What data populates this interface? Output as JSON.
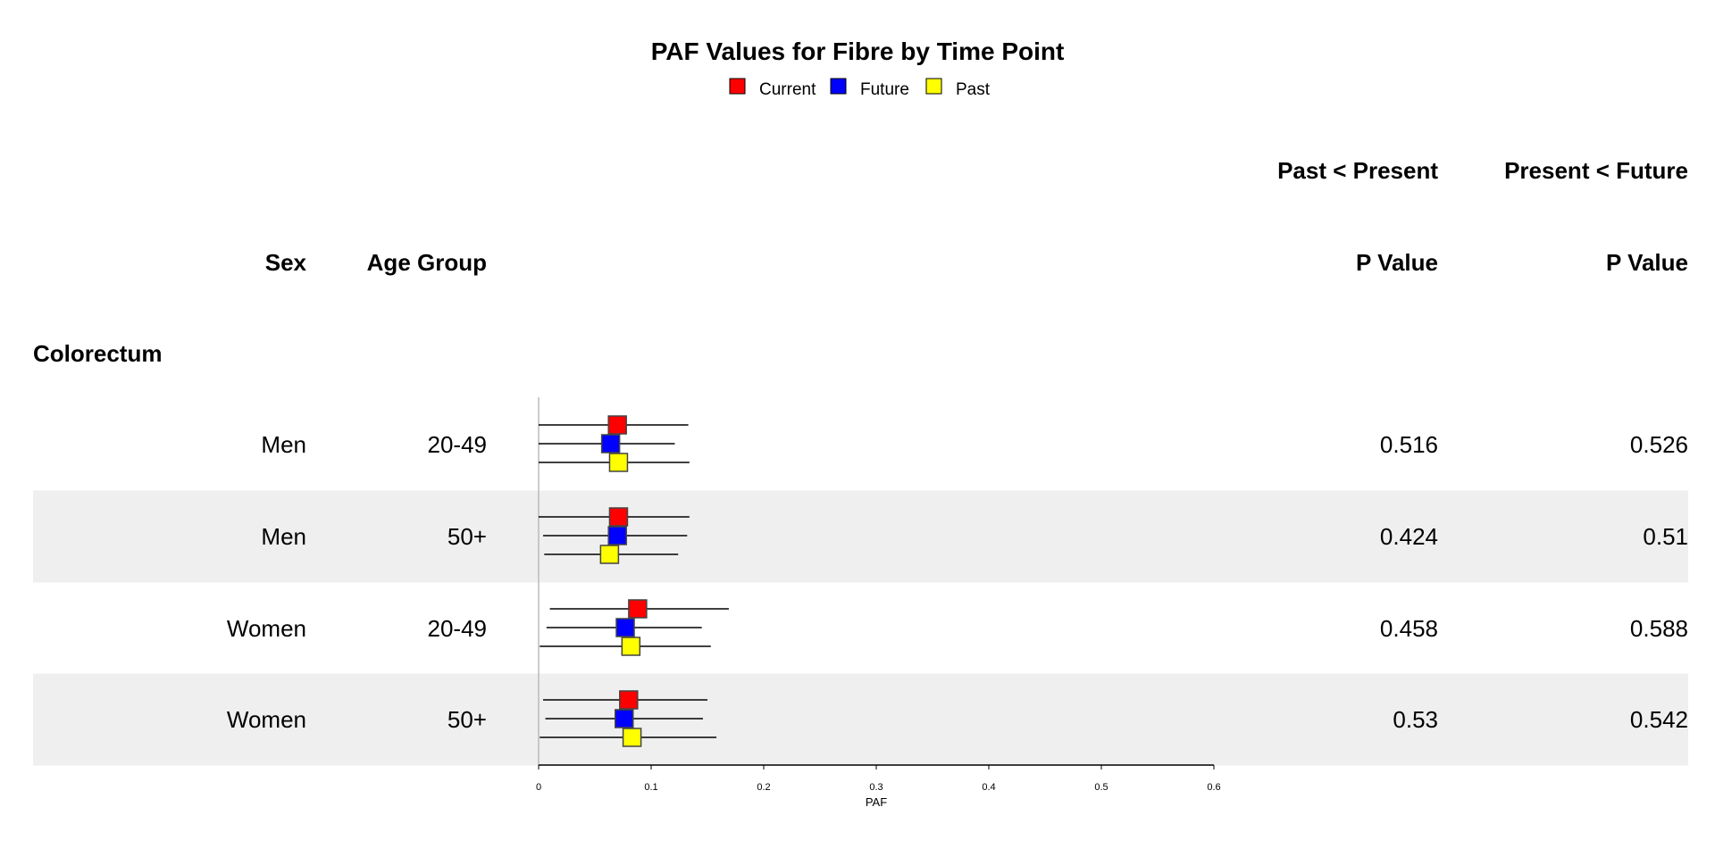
{
  "chart_data": {
    "type": "forest",
    "title": "PAF Values for Fibre by Time Point",
    "legend": {
      "placement": "top-center",
      "entries": [
        {
          "name": "Current",
          "color": "#FF0000"
        },
        {
          "name": "Future",
          "color": "#0000FF"
        },
        {
          "name": "Past",
          "color": "#FFFF00"
        }
      ]
    },
    "columns": {
      "sex": "Sex",
      "age_group": "Age Group",
      "p1_header": "Past < Present",
      "p1_sub": "P Value",
      "p2_header": "Present < Future",
      "p2_sub": "P Value"
    },
    "section_label": "Colorectum",
    "xlabel": "PAF",
    "xlim": [
      0,
      0.6
    ],
    "xticks": [
      "0",
      "0.1",
      "0.2",
      "0.3",
      "0.4",
      "0.5",
      "0.6"
    ],
    "rows": [
      {
        "sex": "Men",
        "age": "20-49",
        "p1": "0.516",
        "p2": "0.526",
        "shaded": false,
        "estimates": [
          {
            "series": "Current",
            "est": 0.07,
            "lo": 0.0,
            "hi": 0.133
          },
          {
            "series": "Future",
            "est": 0.064,
            "lo": 0.0,
            "hi": 0.121
          },
          {
            "series": "Past",
            "est": 0.071,
            "lo": 0.0,
            "hi": 0.134
          }
        ]
      },
      {
        "sex": "Men",
        "age": "50+",
        "p1": "0.424",
        "p2": "0.51",
        "shaded": true,
        "estimates": [
          {
            "series": "Current",
            "est": 0.071,
            "lo": 0.0,
            "hi": 0.134
          },
          {
            "series": "Future",
            "est": 0.07,
            "lo": 0.004,
            "hi": 0.132
          },
          {
            "series": "Past",
            "est": 0.063,
            "lo": 0.005,
            "hi": 0.124
          }
        ]
      },
      {
        "sex": "Women",
        "age": "20-49",
        "p1": "0.458",
        "p2": "0.588",
        "shaded": false,
        "estimates": [
          {
            "series": "Current",
            "est": 0.088,
            "lo": 0.01,
            "hi": 0.169
          },
          {
            "series": "Future",
            "est": 0.077,
            "lo": 0.007,
            "hi": 0.145
          },
          {
            "series": "Past",
            "est": 0.082,
            "lo": 0.001,
            "hi": 0.153
          }
        ]
      },
      {
        "sex": "Women",
        "age": "50+",
        "p1": "0.53",
        "p2": "0.542",
        "shaded": true,
        "estimates": [
          {
            "series": "Current",
            "est": 0.08,
            "lo": 0.004,
            "hi": 0.15
          },
          {
            "series": "Future",
            "est": 0.076,
            "lo": 0.006,
            "hi": 0.146
          },
          {
            "series": "Past",
            "est": 0.083,
            "lo": 0.001,
            "hi": 0.158
          }
        ]
      }
    ]
  }
}
